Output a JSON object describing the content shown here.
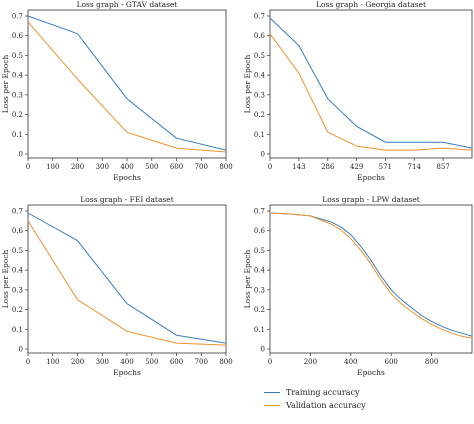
{
  "colors": {
    "training": "#3a7dbd",
    "validation": "#f0932b"
  },
  "legend": {
    "training": "Training accuracy",
    "validation": "Validation accuracy"
  },
  "chart_data": [
    {
      "type": "line",
      "title": "Loss graph - GTAV dataset",
      "xlabel": "Epochs",
      "ylabel": "Loss per Epoch",
      "xlim": [
        0,
        800
      ],
      "ylim": [
        0,
        0.7
      ],
      "xticks": [
        0,
        100,
        200,
        300,
        400,
        500,
        600,
        700,
        800
      ],
      "yticks": [
        0,
        0.1,
        0.2,
        0.3,
        0.4,
        0.5,
        0.6,
        0.7
      ],
      "grid": false,
      "series": [
        {
          "name": "Training accuracy",
          "x": [
            0,
            200,
            400,
            600,
            800
          ],
          "y": [
            0.7,
            0.61,
            0.28,
            0.08,
            0.02
          ]
        },
        {
          "name": "Validation accuracy",
          "x": [
            0,
            200,
            400,
            600,
            800
          ],
          "y": [
            0.67,
            0.38,
            0.11,
            0.03,
            0.01
          ]
        }
      ]
    },
    {
      "type": "line",
      "title": "Loss graph - Georgia dataset",
      "xlabel": "Epochs",
      "ylabel": "Loss per Epoch",
      "xlim": [
        0,
        1000
      ],
      "ylim": [
        0,
        0.7
      ],
      "xticks": [
        0,
        143,
        286,
        429,
        571,
        714,
        857
      ],
      "yticks": [
        0,
        0.1,
        0.2,
        0.3,
        0.4,
        0.5,
        0.6,
        0.7
      ],
      "grid": false,
      "series": [
        {
          "name": "Training accuracy",
          "x": [
            0,
            143,
            286,
            429,
            571,
            714,
            857,
            1000
          ],
          "y": [
            0.69,
            0.55,
            0.28,
            0.14,
            0.06,
            0.06,
            0.06,
            0.03
          ]
        },
        {
          "name": "Validation accuracy",
          "x": [
            0,
            143,
            286,
            429,
            571,
            714,
            857,
            1000
          ],
          "y": [
            0.61,
            0.41,
            0.11,
            0.04,
            0.02,
            0.02,
            0.03,
            0.02
          ]
        }
      ]
    },
    {
      "type": "line",
      "title": "Loss graph - FEI dataset",
      "xlabel": "Epochs",
      "ylabel": "Loss per Epoch",
      "xlim": [
        0,
        800
      ],
      "ylim": [
        0,
        0.7
      ],
      "xticks": [
        0,
        100,
        200,
        300,
        400,
        500,
        600,
        700,
        800
      ],
      "yticks": [
        0,
        0.1,
        0.2,
        0.3,
        0.4,
        0.5,
        0.6,
        0.7
      ],
      "grid": false,
      "series": [
        {
          "name": "Training accuracy",
          "x": [
            0,
            200,
            400,
            600,
            800
          ],
          "y": [
            0.69,
            0.55,
            0.23,
            0.07,
            0.03
          ]
        },
        {
          "name": "Validation accuracy",
          "x": [
            0,
            200,
            400,
            600,
            800
          ],
          "y": [
            0.65,
            0.25,
            0.09,
            0.03,
            0.02
          ]
        }
      ]
    },
    {
      "type": "line",
      "title": "Loss graph - LPW dataset",
      "xlabel": "Epochs",
      "ylabel": "Loss per Epoch",
      "xlim": [
        0,
        1000
      ],
      "ylim": [
        0,
        0.7
      ],
      "xticks": [
        0,
        200,
        400,
        600,
        800
      ],
      "yticks": [
        0,
        0.1,
        0.2,
        0.3,
        0.4,
        0.5,
        0.6,
        0.7
      ],
      "grid": false,
      "series": [
        {
          "name": "Training accuracy",
          "x": [
            0,
            100,
            200,
            250,
            300,
            350,
            400,
            450,
            500,
            550,
            600,
            650,
            700,
            750,
            800,
            850,
            900,
            950,
            1000
          ],
          "y": [
            0.69,
            0.685,
            0.675,
            0.66,
            0.645,
            0.62,
            0.58,
            0.52,
            0.45,
            0.37,
            0.3,
            0.25,
            0.21,
            0.17,
            0.14,
            0.115,
            0.095,
            0.08,
            0.065
          ]
        },
        {
          "name": "Validation accuracy",
          "x": [
            0,
            100,
            200,
            250,
            300,
            350,
            400,
            450,
            500,
            550,
            600,
            650,
            700,
            750,
            800,
            850,
            900,
            950,
            1000
          ],
          "y": [
            0.69,
            0.685,
            0.675,
            0.655,
            0.635,
            0.605,
            0.56,
            0.5,
            0.43,
            0.35,
            0.28,
            0.23,
            0.19,
            0.155,
            0.125,
            0.1,
            0.08,
            0.065,
            0.055
          ]
        }
      ]
    }
  ]
}
